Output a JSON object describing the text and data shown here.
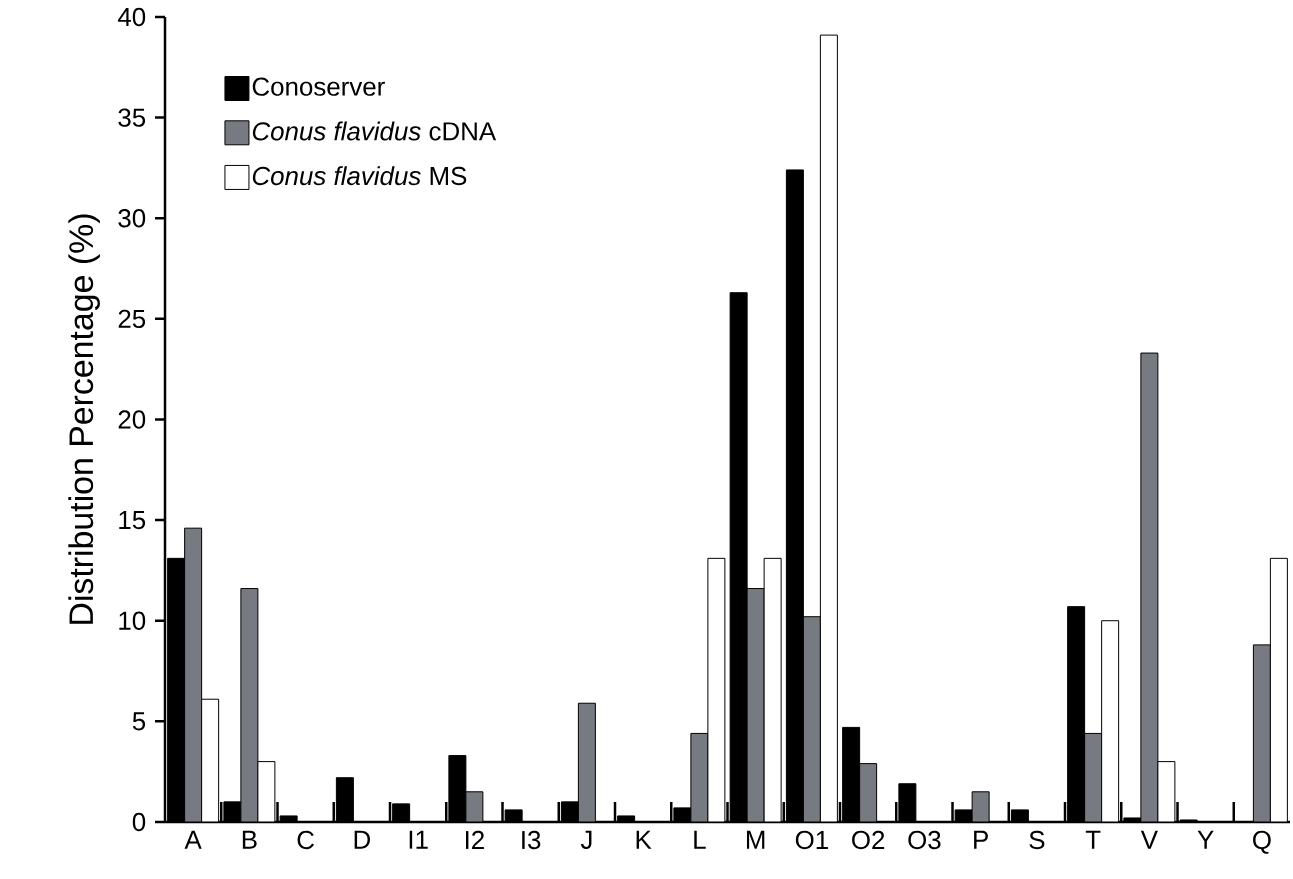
{
  "chart_data": {
    "type": "bar",
    "ylabel": "Distribution Percentage (%)",
    "categories": [
      "A",
      "B",
      "C",
      "D",
      "I1",
      "I2",
      "I3",
      "J",
      "K",
      "L",
      "M",
      "O1",
      "O2",
      "O3",
      "P",
      "S",
      "T",
      "V",
      "Y",
      "Q"
    ],
    "series": [
      {
        "name": "Conoserver",
        "color": "#000000",
        "values": [
          13.1,
          1.0,
          0.3,
          2.2,
          0.9,
          3.3,
          0.6,
          1.0,
          0.3,
          0.7,
          26.3,
          32.4,
          4.7,
          1.9,
          0.6,
          0.6,
          10.7,
          0.2,
          0.1,
          null
        ]
      },
      {
        "name": "*Conus flavidus* cDNA",
        "color": "#777a80",
        "values": [
          14.6,
          11.6,
          null,
          null,
          null,
          1.5,
          null,
          5.9,
          null,
          4.4,
          11.6,
          10.2,
          2.9,
          null,
          1.5,
          null,
          4.4,
          23.3,
          null,
          8.8
        ]
      },
      {
        "name": "*Conus flavidus* MS",
        "color": "#ffffff",
        "values": [
          6.1,
          3.0,
          null,
          null,
          null,
          null,
          null,
          null,
          null,
          13.1,
          13.1,
          39.1,
          null,
          null,
          null,
          null,
          10.0,
          3.0,
          null,
          13.1
        ]
      }
    ],
    "ylim": [
      0,
      40
    ],
    "yticks": [
      0,
      5,
      10,
      15,
      20,
      25,
      30,
      35,
      40
    ],
    "legend": "top left"
  }
}
